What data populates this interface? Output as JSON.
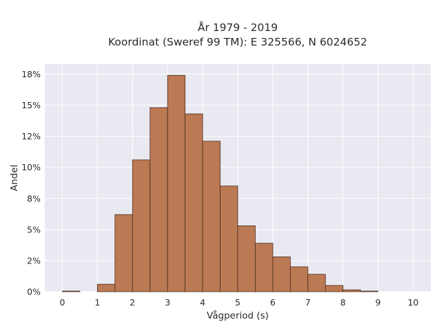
{
  "chart_data": {
    "type": "bar",
    "title_line1": "År 1979 - 2019",
    "title_line2": "Koordinat (Sweref 99 TM): E 325566, N 6024652",
    "xlabel": "Vågperiod (s)",
    "ylabel": "Andel",
    "bin_width": 0.5,
    "bins": [
      {
        "x0": 0.0,
        "value": 0.05
      },
      {
        "x0": 0.5,
        "value": 0.0
      },
      {
        "x0": 1.0,
        "value": 0.6
      },
      {
        "x0": 1.5,
        "value": 6.2
      },
      {
        "x0": 2.0,
        "value": 10.6
      },
      {
        "x0": 2.5,
        "value": 14.8
      },
      {
        "x0": 3.0,
        "value": 17.4
      },
      {
        "x0": 3.5,
        "value": 14.3
      },
      {
        "x0": 4.0,
        "value": 12.1
      },
      {
        "x0": 4.5,
        "value": 8.5
      },
      {
        "x0": 5.0,
        "value": 5.3
      },
      {
        "x0": 5.5,
        "value": 3.9
      },
      {
        "x0": 6.0,
        "value": 2.8
      },
      {
        "x0": 6.5,
        "value": 2.0
      },
      {
        "x0": 7.0,
        "value": 1.4
      },
      {
        "x0": 7.5,
        "value": 0.5
      },
      {
        "x0": 8.0,
        "value": 0.15
      },
      {
        "x0": 8.5,
        "value": 0.05
      },
      {
        "x0": 9.0,
        "value": 0.0
      },
      {
        "x0": 9.5,
        "value": 0.0
      }
    ],
    "xlim": [
      -0.5,
      10.5
    ],
    "ylim": [
      0,
      18.3
    ],
    "x_ticks": [
      0,
      1,
      2,
      3,
      4,
      5,
      6,
      7,
      8,
      9,
      10
    ],
    "x_tick_labels": [
      "0",
      "1",
      "2",
      "3",
      "4",
      "5",
      "6",
      "7",
      "8",
      "9",
      "10"
    ],
    "y_ticks": [
      0,
      2.5,
      5,
      7.5,
      10,
      12.5,
      15,
      17.5
    ],
    "y_tick_labels": [
      "0%",
      "2%",
      "5%",
      "8%",
      "10%",
      "12%",
      "15%",
      "18%"
    ],
    "grid": true,
    "colors": {
      "bar_fill": "#bb7954",
      "bar_stroke": "#4a2c1d",
      "plot_bg": "#e9e9f1",
      "grid": "#ffffff",
      "text": "#2a2a2a"
    }
  }
}
